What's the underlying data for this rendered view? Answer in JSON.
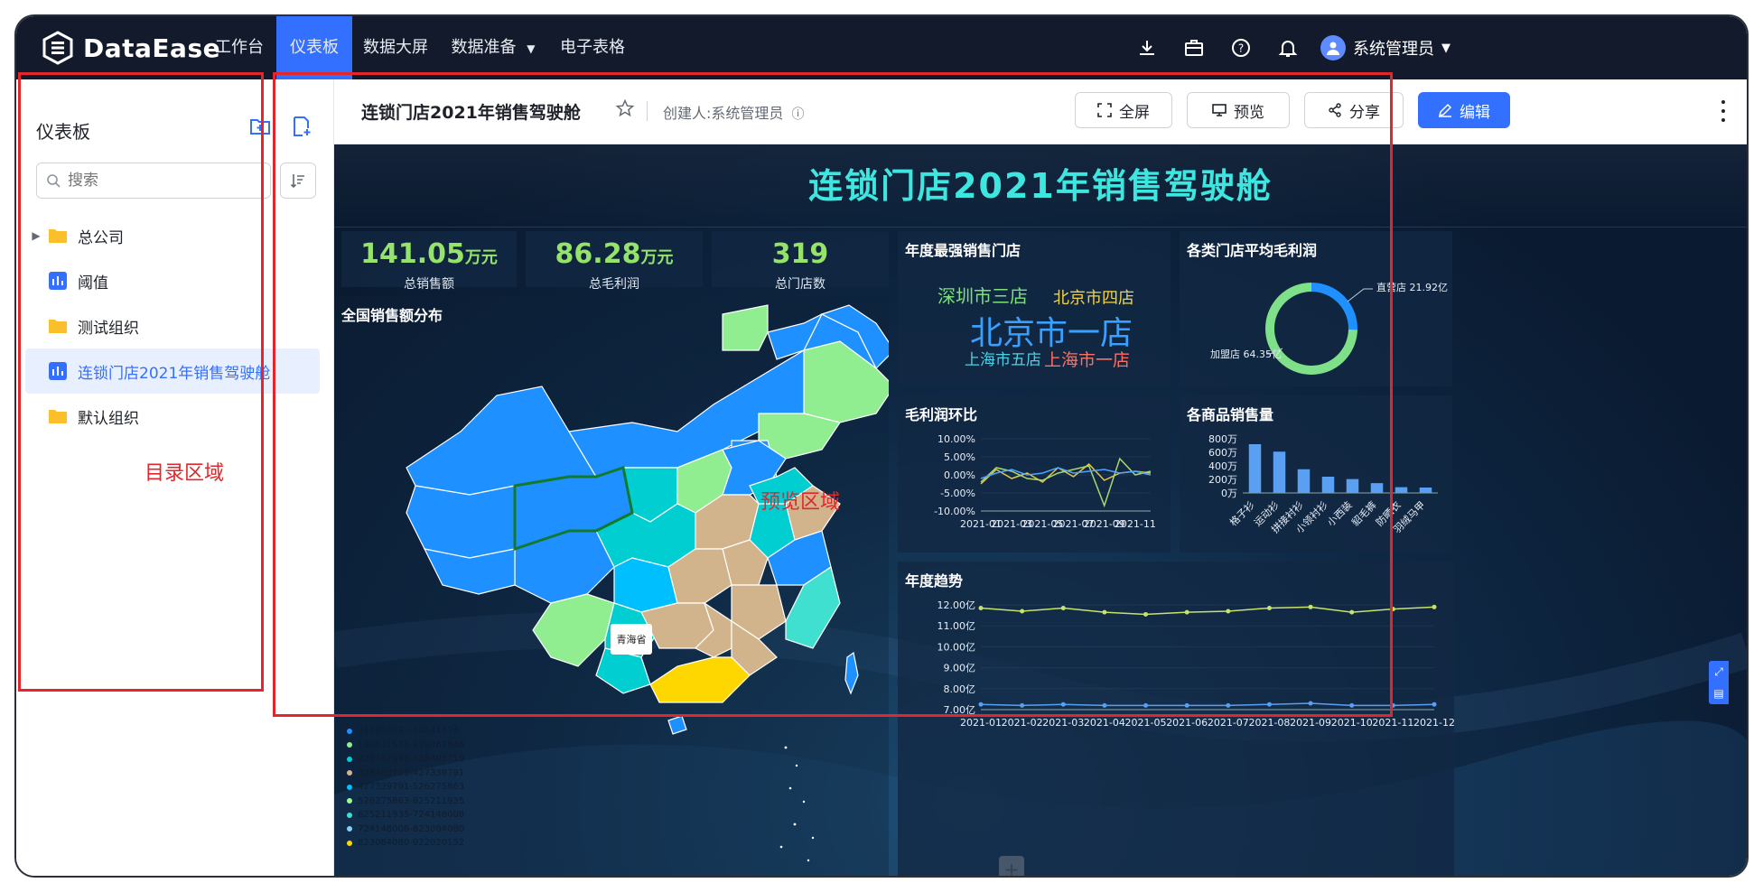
{
  "app": {
    "logo_text": "DataEase"
  },
  "nav": {
    "items": [
      "工作台",
      "仪表板",
      "数据大屏",
      "数据准备",
      "电子表格"
    ],
    "active": "仪表板",
    "user_name": "系统管理员"
  },
  "sidebar": {
    "title": "仪表板",
    "search_placeholder": "搜索",
    "tree": [
      {
        "label": "总公司",
        "type": "folder",
        "expandable": true
      },
      {
        "label": "阈值",
        "type": "dashboard"
      },
      {
        "label": "测试组织",
        "type": "folder"
      },
      {
        "label": "连锁门店2021年销售驾驶舱",
        "type": "dashboard",
        "active": true
      },
      {
        "label": "默认组织",
        "type": "folder"
      }
    ],
    "region_label": "目录区域"
  },
  "header": {
    "title": "连锁门店2021年销售驾驶舱",
    "creator": "创建人:系统管理员",
    "buttons": {
      "fullscreen": "全屏",
      "preview": "预览",
      "share": "分享",
      "edit": "编辑"
    }
  },
  "dashboard": {
    "title": "连锁门店2021年销售驾驶舱",
    "preview_region_label": "预览区域",
    "kpis": [
      {
        "value": "141.05",
        "unit": "万元",
        "label": "总销售额"
      },
      {
        "value": "86.28",
        "unit": "万元",
        "label": "总毛利润"
      },
      {
        "value": "319",
        "unit": "",
        "label": "总门店数"
      }
    ],
    "map": {
      "title": "全国销售额分布",
      "tooltip": "青海省",
      "legend": [
        "31595502-130531574",
        "130531574-229467646",
        "229467646-328403719",
        "328403719-427339791",
        "427339791-526275863",
        "526275863-625211935",
        "625211935-724148008",
        "724148008-823084080",
        "823084080-922020152"
      ],
      "legend_colors": [
        "#1e90ff",
        "#90ee90",
        "#00ced1",
        "#d2b48c",
        "#00bfff",
        "#98fb98",
        "#40e0d0",
        "#87cefa",
        "#ffd700"
      ]
    },
    "wordcloud": {
      "title": "年度最强销售门店",
      "words": [
        {
          "text": "深圳市三店",
          "color": "#7ee07a"
        },
        {
          "text": "北京市四店",
          "color": "#f3d24a"
        },
        {
          "text": "北京市一店",
          "color": "#3aa0ff"
        },
        {
          "text": "上海市五店",
          "color": "#4fd1e6"
        },
        {
          "text": "上海市一店",
          "color": "#ff6f61"
        }
      ]
    }
  },
  "chart_data": [
    {
      "type": "pie",
      "title": "各类门店平均毛利润",
      "slices": [
        {
          "name": "直营店",
          "value": 21.92,
          "label": "直营店 21.92亿",
          "color": "#1e90ff"
        },
        {
          "name": "加盟店",
          "value": 64.35,
          "label": "加盟店 64.35亿",
          "color": "#7fe08a"
        }
      ]
    },
    {
      "type": "line",
      "title": "毛利润环比",
      "x": [
        "2021-01",
        "2021-02",
        "2021-03",
        "2021-04",
        "2021-05",
        "2021-06",
        "2021-07",
        "2021-08",
        "2021-09",
        "2021-10",
        "2021-11",
        "2021-12"
      ],
      "tick_labels_x": [
        "2021-01",
        "2021-03",
        "2021-05",
        "2021-07",
        "2021-09",
        "2021-11"
      ],
      "ylim": [
        -10,
        10
      ],
      "yticks": [
        "10.00%",
        "5.00%",
        "0.00%",
        "-5.00%",
        "-10.00%"
      ],
      "series": [
        {
          "values": [
            -2.5,
            1.5,
            -1.0,
            0.5,
            -2.0,
            2.0,
            -0.5,
            3.0,
            -1.5,
            0.5,
            1.0,
            0.5
          ],
          "color": "#e8c547"
        },
        {
          "values": [
            -2.0,
            2.0,
            1.0,
            -1.0,
            -1.5,
            0.5,
            1.5,
            2.5,
            -8.5,
            4.5,
            0.0,
            1.0
          ],
          "color": "#a8d86a"
        },
        {
          "values": [
            -1.0,
            0.5,
            1.5,
            0.0,
            0.5,
            2.0,
            0.5,
            1.0,
            1.5,
            0.5,
            1.0,
            0.0
          ],
          "color": "#4fa3ff"
        }
      ]
    },
    {
      "type": "bar",
      "title": "各商品销售量",
      "categories": [
        "格子衫",
        "运动衫",
        "拼接衬衫",
        "小领衬衫",
        "小西装",
        "貂毛裤",
        "防晒衣",
        "羽绒马甲"
      ],
      "values": [
        720,
        610,
        350,
        240,
        205,
        145,
        85,
        80
      ],
      "ylim": [
        0,
        800
      ],
      "yticks": [
        "800万",
        "600万",
        "400万",
        "200万",
        "0万"
      ],
      "color": "#5aa0f2"
    },
    {
      "type": "line",
      "title": "年度趋势",
      "x": [
        "2021-01",
        "2021-02",
        "2021-03",
        "2021-04",
        "2021-05",
        "2021-06",
        "2021-07",
        "2021-08",
        "2021-09",
        "2021-10",
        "2021-11",
        "2021-12"
      ],
      "ylim": [
        7,
        12
      ],
      "yticks": [
        "12.00亿",
        "11.00亿",
        "10.00亿",
        "9.00亿",
        "8.00亿",
        "7.00亿"
      ],
      "series": [
        {
          "values": [
            11.85,
            11.7,
            11.85,
            11.65,
            11.55,
            11.65,
            11.7,
            11.85,
            11.9,
            11.65,
            11.8,
            11.9
          ],
          "color": "#c8e36a"
        },
        {
          "values": [
            7.25,
            7.2,
            7.25,
            7.2,
            7.2,
            7.2,
            7.2,
            7.25,
            7.3,
            7.2,
            7.2,
            7.25
          ],
          "color": "#5aa0f2"
        }
      ]
    }
  ]
}
